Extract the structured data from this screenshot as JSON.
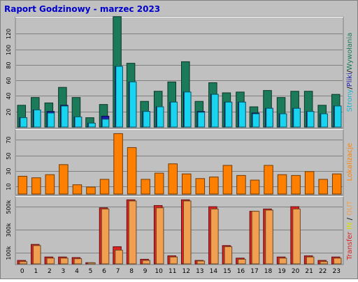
{
  "title": "Raport Godzinowy -  marzec 2023",
  "chart_data": [
    {
      "type": "bar",
      "panel": "strony-pliki-wywolania",
      "categories": [
        "0",
        "1",
        "2",
        "3",
        "4",
        "5",
        "6",
        "7",
        "8",
        "9",
        "10",
        "11",
        "12",
        "13",
        "14",
        "15",
        "16",
        "17",
        "18",
        "19",
        "20",
        "21",
        "22",
        "23"
      ],
      "series": [
        {
          "name": "Wywołania",
          "color": "#1b7a5a",
          "values": [
            28,
            38,
            31,
            51,
            38,
            12,
            29,
            142,
            82,
            33,
            46,
            58,
            84,
            33,
            57,
            44,
            45,
            26,
            47,
            38,
            46,
            46,
            28,
            42
          ]
        },
        {
          "name": "Pliki",
          "color": "#1a1aaa",
          "values": [
            12,
            22,
            20,
            28,
            13,
            5,
            14,
            78,
            58,
            20,
            26,
            32,
            45,
            20,
            42,
            32,
            32,
            18,
            24,
            17,
            24,
            20,
            17,
            27
          ]
        },
        {
          "name": "Strony",
          "color": "#19d4f0",
          "values": [
            12,
            22,
            18,
            27,
            13,
            5,
            10,
            78,
            58,
            20,
            26,
            32,
            45,
            19,
            42,
            32,
            32,
            17,
            24,
            17,
            24,
            20,
            17,
            27
          ]
        }
      ],
      "yticks": [
        "20",
        "40",
        "60",
        "80",
        "100",
        "120"
      ],
      "ylim": [
        0,
        140
      ],
      "ylabel_parts": [
        {
          "text": "Strony",
          "color": "#19b4d0"
        },
        {
          "text": "/",
          "color": "#000000"
        },
        {
          "text": "Pliki",
          "color": "#1a1aaa"
        },
        {
          "text": "/",
          "color": "#000000"
        },
        {
          "text": "Wywołania",
          "color": "#1b7a5a"
        }
      ]
    },
    {
      "type": "bar",
      "panel": "lokalizacje",
      "categories": [
        "0",
        "1",
        "2",
        "3",
        "4",
        "5",
        "6",
        "7",
        "8",
        "9",
        "10",
        "11",
        "12",
        "13",
        "14",
        "15",
        "16",
        "17",
        "18",
        "19",
        "20",
        "21",
        "22",
        "23"
      ],
      "series": [
        {
          "name": "Lokalizacje",
          "color": "#ff8000",
          "values": [
            23,
            21,
            25,
            38,
            12,
            9,
            19,
            78,
            60,
            19,
            27,
            39,
            26,
            20,
            22,
            37,
            24,
            18,
            37,
            25,
            24,
            29,
            19,
            26
          ]
        }
      ],
      "yticks": [
        "10",
        "30",
        "50",
        "70"
      ],
      "ylim": [
        0,
        82
      ],
      "ylabel_parts": [
        {
          "text": "Lokalizacje",
          "color": "#ff8000"
        }
      ]
    },
    {
      "type": "bar",
      "panel": "transfer",
      "categories": [
        "0",
        "1",
        "2",
        "3",
        "4",
        "5",
        "6",
        "7",
        "8",
        "9",
        "10",
        "11",
        "12",
        "13",
        "14",
        "15",
        "16",
        "17",
        "18",
        "19",
        "20",
        "21",
        "22",
        "23"
      ],
      "series": [
        {
          "name": "Transfer",
          "color": "#dd2222",
          "values": [
            30000,
            170000,
            60000,
            60000,
            55000,
            10000,
            490000,
            150000,
            560000,
            40000,
            510000,
            70000,
            560000,
            30000,
            500000,
            160000,
            50000,
            460000,
            480000,
            60000,
            500000,
            70000,
            30000,
            60000
          ]
        },
        {
          "name": "OUT",
          "color": "#f0a050",
          "values": [
            20000,
            160000,
            50000,
            50000,
            45000,
            10000,
            480000,
            120000,
            550000,
            30000,
            490000,
            60000,
            550000,
            25000,
            480000,
            150000,
            40000,
            460000,
            470000,
            50000,
            480000,
            60000,
            20000,
            50000
          ]
        }
      ],
      "yticks": [
        "100k",
        "300k",
        "500k"
      ],
      "ylim": [
        0,
        580000
      ],
      "ylabel_parts": [
        {
          "text": "Transfer",
          "color": "#dd2222"
        },
        {
          "text": " ",
          "color": "#000000"
        },
        {
          "text": "IN",
          "color": "#dddd00"
        },
        {
          "text": " / ",
          "color": "#000000"
        },
        {
          "text": "OUT",
          "color": "#f0a050"
        }
      ]
    }
  ]
}
